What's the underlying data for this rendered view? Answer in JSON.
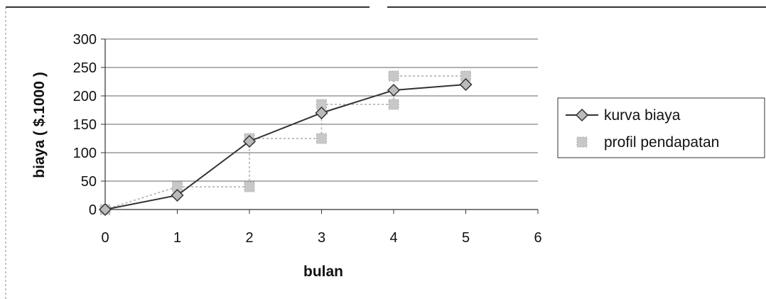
{
  "chart_data": {
    "type": "line",
    "xlabel": "bulan",
    "ylabel": "biaya ( $.1000 )",
    "xlim": [
      0,
      6
    ],
    "ylim": [
      0,
      300
    ],
    "x_ticks": [
      "0",
      "1",
      "2",
      "3",
      "4",
      "5",
      "6"
    ],
    "y_ticks": [
      "0",
      "50",
      "100",
      "150",
      "200",
      "250",
      "300"
    ],
    "grid": "horizontal",
    "legend_position": "right",
    "series": [
      {
        "name": "kurva biaya",
        "color": "#333333",
        "marker": "diamond",
        "points": [
          {
            "x": 0,
            "y": 0
          },
          {
            "x": 1,
            "y": 25
          },
          {
            "x": 2,
            "y": 120
          },
          {
            "x": 3,
            "y": 170
          },
          {
            "x": 4,
            "y": 210
          },
          {
            "x": 5,
            "y": 220
          }
        ]
      },
      {
        "name": "profil pendapatan",
        "color": "#aaaaaa",
        "marker": "square",
        "style": "step",
        "points": [
          {
            "x": 0,
            "y": 0
          },
          {
            "x": 1,
            "y": 40
          },
          {
            "x": 2,
            "y": 40
          },
          {
            "x": 2,
            "y": 125
          },
          {
            "x": 3,
            "y": 125
          },
          {
            "x": 3,
            "y": 185
          },
          {
            "x": 4,
            "y": 185
          },
          {
            "x": 4,
            "y": 235
          },
          {
            "x": 5,
            "y": 235
          }
        ]
      }
    ]
  }
}
